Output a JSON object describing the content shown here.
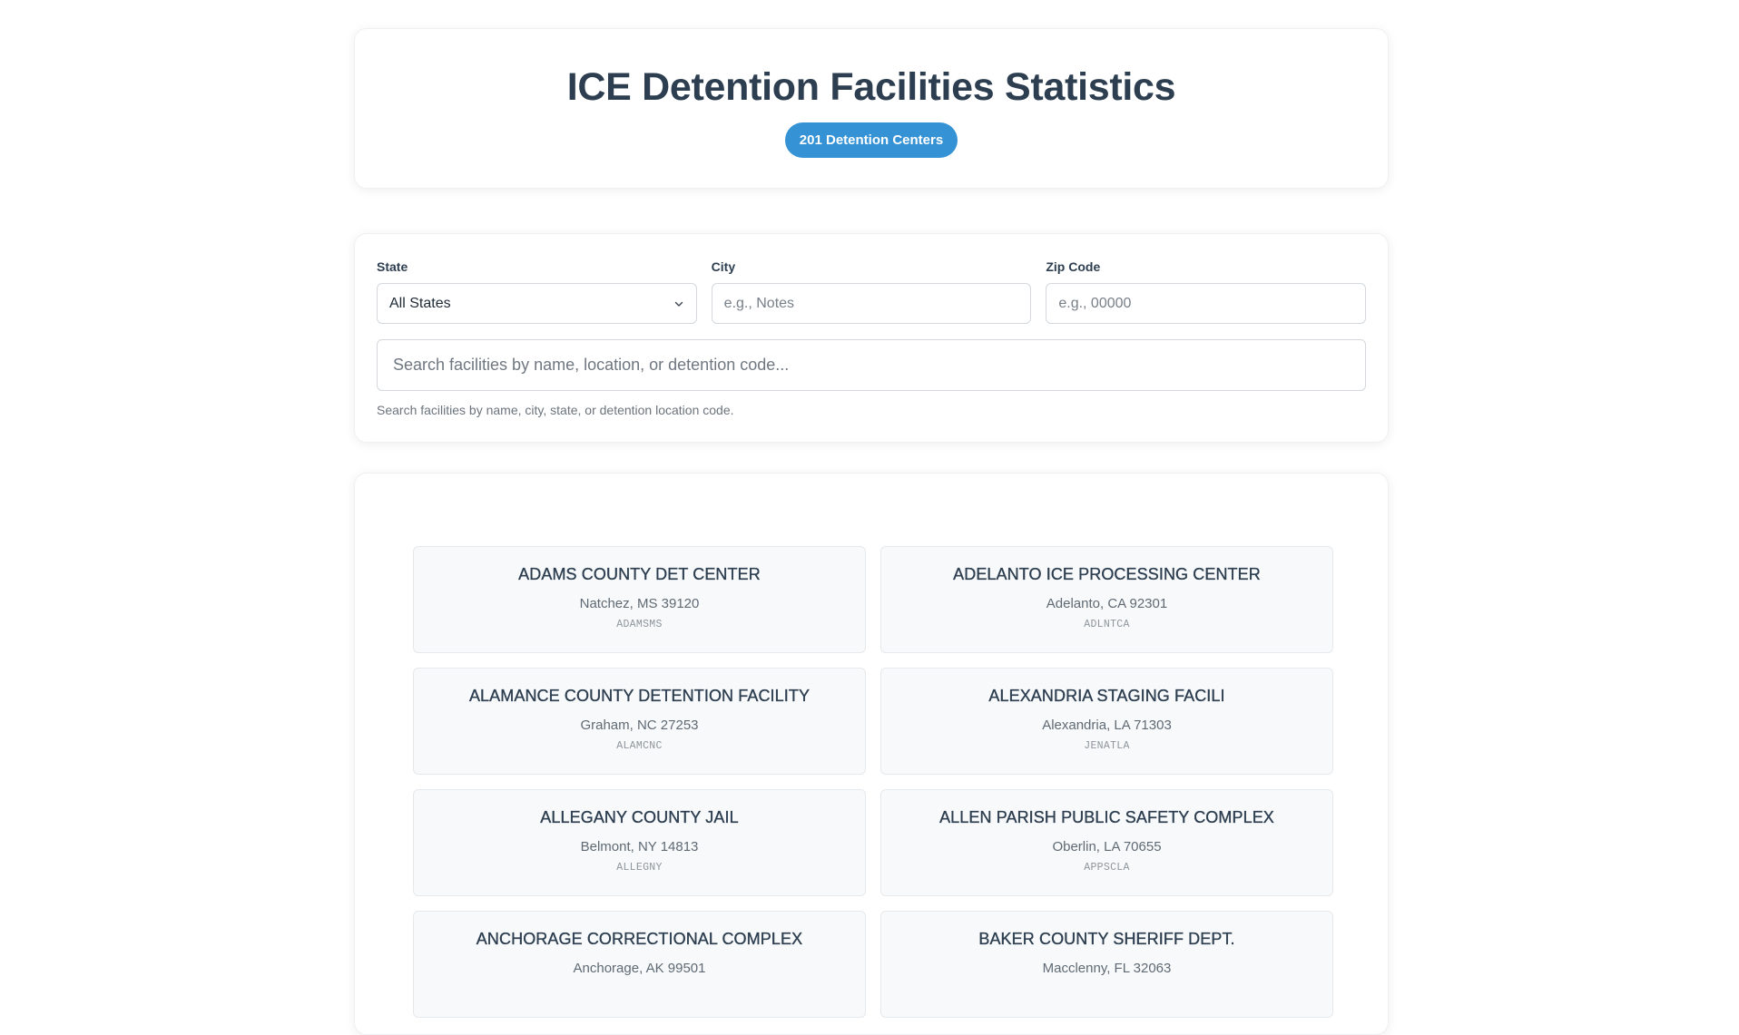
{
  "header": {
    "title": "ICE Detention Facilities Statistics",
    "count_badge": "201 Detention Centers"
  },
  "filters": {
    "state_label": "State",
    "state_value": "All States",
    "city_label": "City",
    "city_placeholder": "e.g., Notes",
    "zip_label": "Zip Code",
    "zip_placeholder": "e.g., 00000",
    "search_placeholder": "Search facilities by name, location, or detention code...",
    "search_hint": "Search facilities by name, city, state, or detention location code."
  },
  "facilities": [
    {
      "name": "ADAMS COUNTY DET CENTER",
      "location": "Natchez, MS 39120",
      "code": "ADAMSMS"
    },
    {
      "name": "ADELANTO ICE PROCESSING CENTER",
      "location": "Adelanto, CA 92301",
      "code": "ADLNTCA"
    },
    {
      "name": "ALAMANCE COUNTY DETENTION FACILITY",
      "location": "Graham, NC 27253",
      "code": "ALAMCNC"
    },
    {
      "name": "ALEXANDRIA STAGING FACILI",
      "location": "Alexandria, LA 71303",
      "code": "JENATLA"
    },
    {
      "name": "ALLEGANY COUNTY JAIL",
      "location": "Belmont, NY 14813",
      "code": "ALLEGNY"
    },
    {
      "name": "ALLEN PARISH PUBLIC SAFETY COMPLEX",
      "location": "Oberlin, LA 70655",
      "code": "APPSCLA"
    },
    {
      "name": "ANCHORAGE CORRECTIONAL COMPLEX",
      "location": "Anchorage, AK 99501",
      "code": ""
    },
    {
      "name": "BAKER COUNTY SHERIFF DEPT.",
      "location": "Macclenny, FL 32063",
      "code": ""
    }
  ]
}
